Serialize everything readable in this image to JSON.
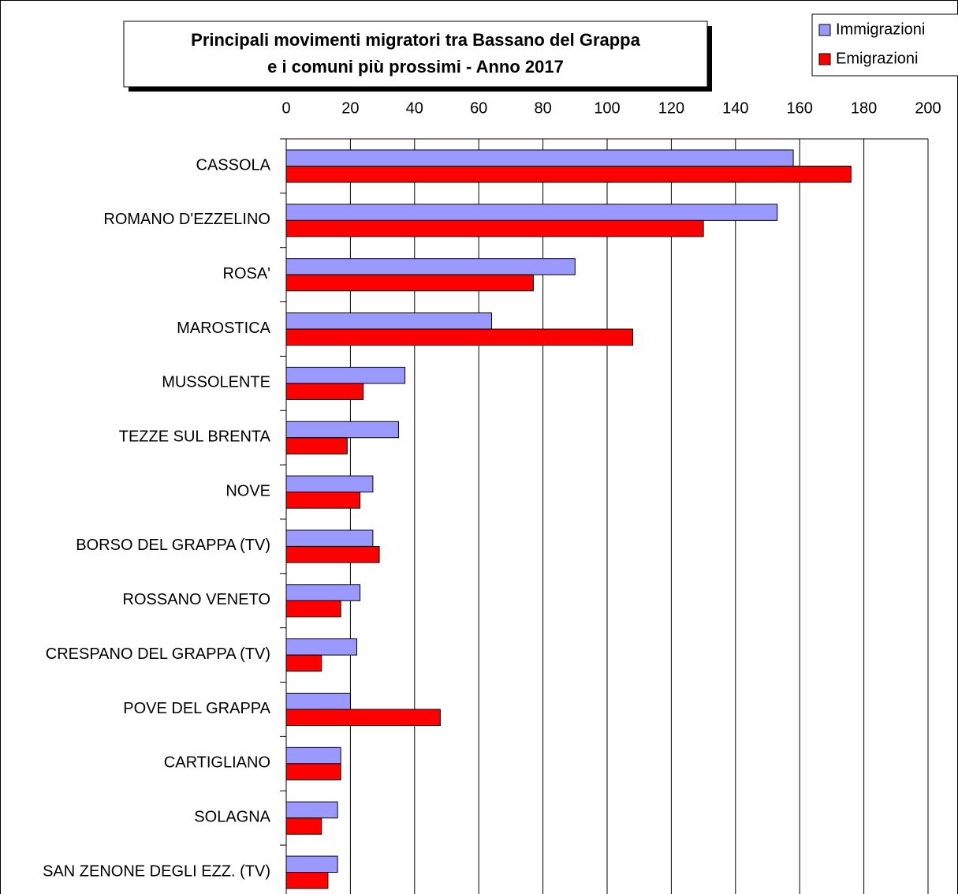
{
  "chart_data": {
    "type": "bar",
    "orientation": "horizontal",
    "title": [
      "Principali movimenti migratori tra Bassano del Grappa",
      "e i comuni più prossimi - Anno 2017"
    ],
    "categories": [
      "CASSOLA",
      "ROMANO D'EZZELINO",
      "ROSA'",
      "MAROSTICA",
      "MUSSOLENTE",
      "TEZZE SUL BRENTA",
      "NOVE",
      "BORSO DEL GRAPPA (TV)",
      "ROSSANO VENETO",
      "CRESPANO DEL GRAPPA (TV)",
      "POVE DEL GRAPPA",
      "CARTIGLIANO",
      "SOLAGNA",
      "SAN ZENONE DEGLI EZZ. (TV)"
    ],
    "series": [
      {
        "name": "Immigrazioni",
        "color": "#9999ff",
        "values": [
          158,
          153,
          90,
          64,
          37,
          35,
          27,
          27,
          23,
          22,
          20,
          17,
          16,
          16
        ]
      },
      {
        "name": "Emigrazioni",
        "color": "#ff0000",
        "values": [
          176,
          130,
          77,
          108,
          24,
          19,
          23,
          29,
          17,
          11,
          48,
          17,
          11,
          13
        ]
      }
    ],
    "xlim": [
      0,
      200
    ],
    "xticks": [
      0,
      20,
      40,
      60,
      80,
      100,
      120,
      140,
      160,
      180,
      200
    ],
    "grid": true,
    "legend": "top-right"
  }
}
